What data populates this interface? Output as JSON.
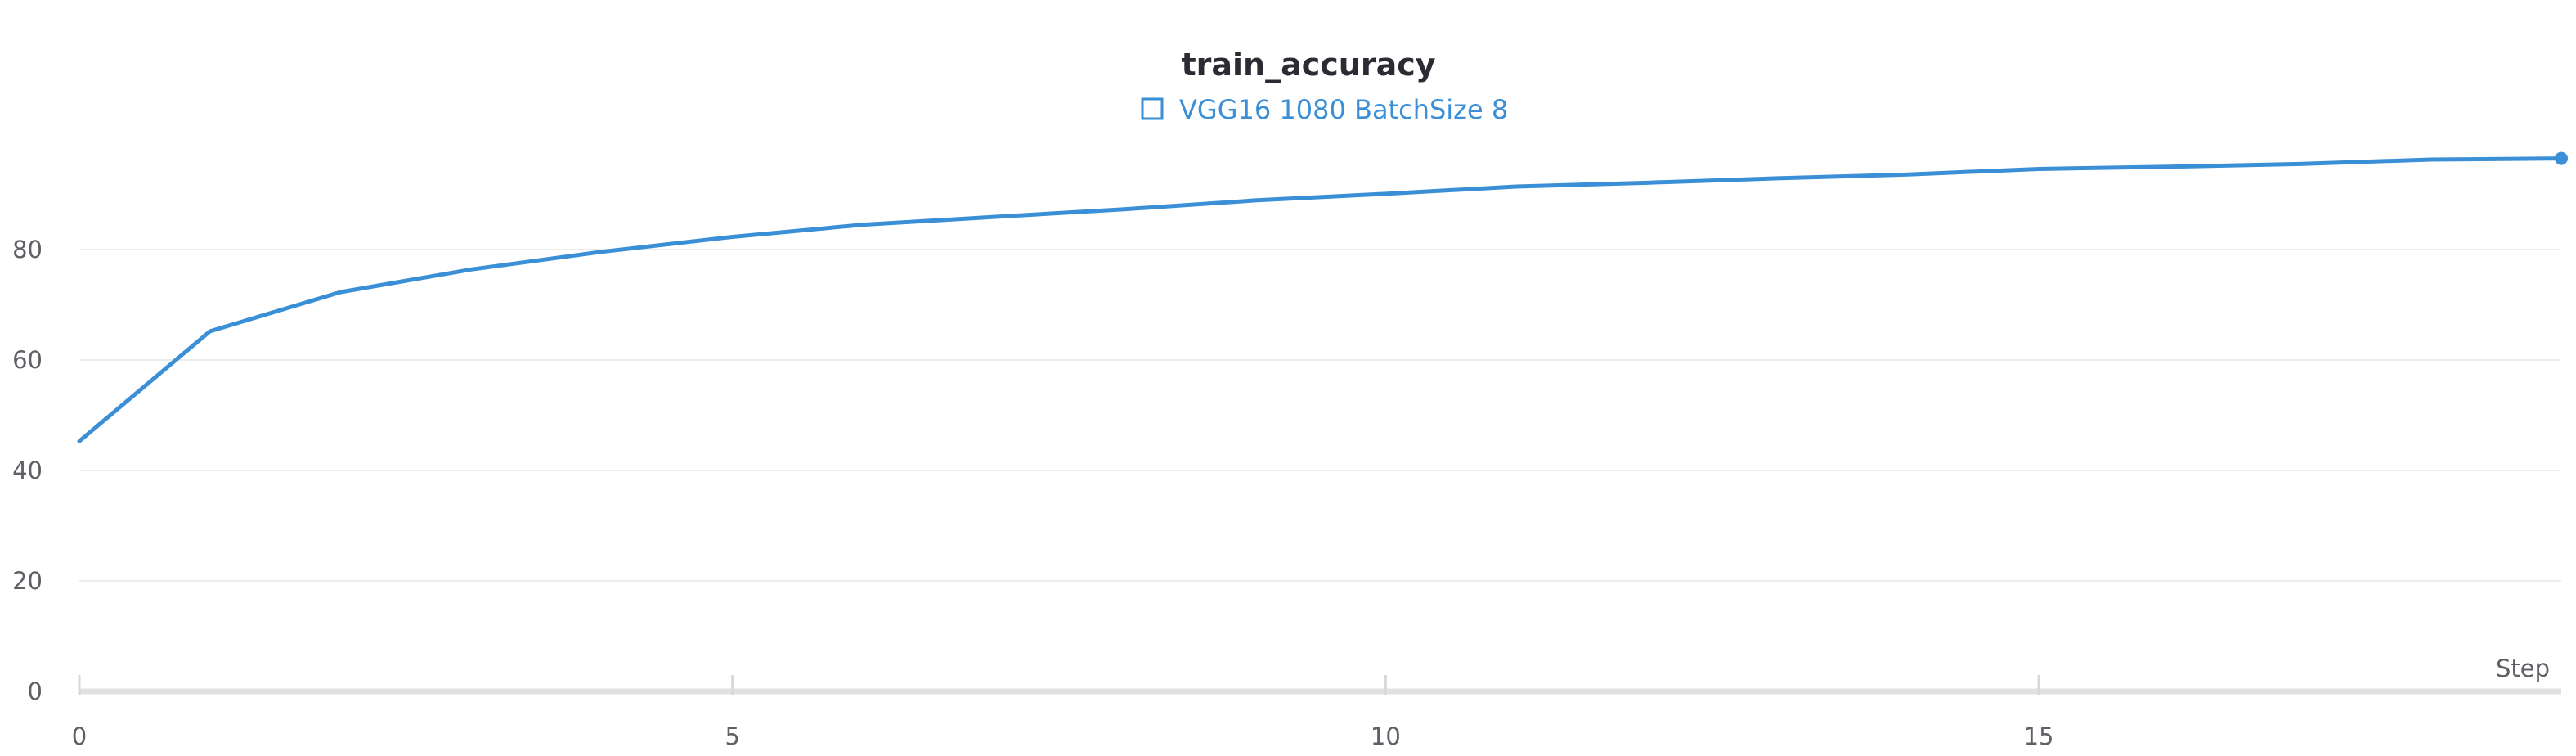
{
  "chart_data": {
    "type": "line",
    "title": "train_accuracy",
    "xlabel": "Step",
    "ylabel": "",
    "xlim": [
      0,
      19
    ],
    "ylim": [
      0,
      100
    ],
    "x_ticks": [
      0,
      5,
      10,
      15
    ],
    "y_ticks": [
      0,
      20,
      40,
      60,
      80
    ],
    "grid": true,
    "legend": "top-center",
    "series": [
      {
        "name": "VGG16 1080 BatchSize 8",
        "color": "#3a8fd6",
        "x": [
          0,
          1,
          2,
          3,
          4,
          5,
          6,
          7,
          8,
          9,
          10,
          11,
          12,
          13,
          14,
          15,
          16,
          17,
          18,
          19
        ],
        "y": [
          45.3,
          65.2,
          72.3,
          76.4,
          79.6,
          82.3,
          84.5,
          85.9,
          87.3,
          88.9,
          90.1,
          91.4,
          92.1,
          92.9,
          93.6,
          94.6,
          95.0,
          95.5,
          96.3,
          96.5
        ]
      }
    ]
  }
}
